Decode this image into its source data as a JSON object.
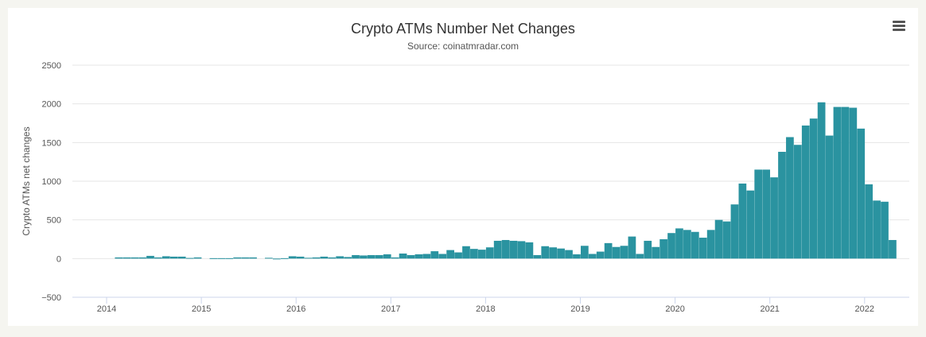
{
  "chart_data": {
    "type": "bar",
    "title": "Crypto ATMs Number Net Changes",
    "subtitle": "Source: coinatmradar.com",
    "ylabel": "Crypto ATMs net changes",
    "xlabel": "",
    "ylim": [
      -500,
      2500
    ],
    "yticks": [
      "2500",
      "2000",
      "1500",
      "1000",
      "500",
      "0",
      "−500"
    ],
    "xticks": [
      "2014",
      "2015",
      "2016",
      "2017",
      "2018",
      "2019",
      "2020",
      "2021",
      "2022"
    ],
    "grid": true,
    "bar_color": "#2a93a0",
    "series": [
      {
        "start": "2014-02",
        "values": [
          15,
          15,
          15,
          15,
          35,
          15,
          30,
          25,
          25,
          8,
          15,
          0,
          5,
          5,
          5,
          15,
          15,
          15,
          0,
          10,
          -10,
          5,
          30,
          25,
          10,
          15,
          25,
          15,
          30,
          20,
          45,
          40,
          45,
          45,
          55,
          15,
          65,
          45,
          55,
          60,
          95,
          60,
          110,
          80,
          160,
          125,
          115,
          145,
          230,
          240,
          230,
          225,
          210,
          45,
          160,
          145,
          130,
          110,
          55,
          165,
          60,
          90,
          200,
          150,
          165,
          285,
          60,
          230,
          150,
          250,
          330,
          390,
          370,
          345,
          270,
          370,
          500,
          480,
          700,
          970,
          880,
          1150,
          1150,
          1050,
          1380,
          1570,
          1470,
          1720,
          1810,
          2020,
          1590,
          1960,
          1960,
          1950,
          1680,
          960,
          750,
          735,
          240
        ]
      }
    ]
  },
  "menu_icon": "hamburger-menu-icon"
}
